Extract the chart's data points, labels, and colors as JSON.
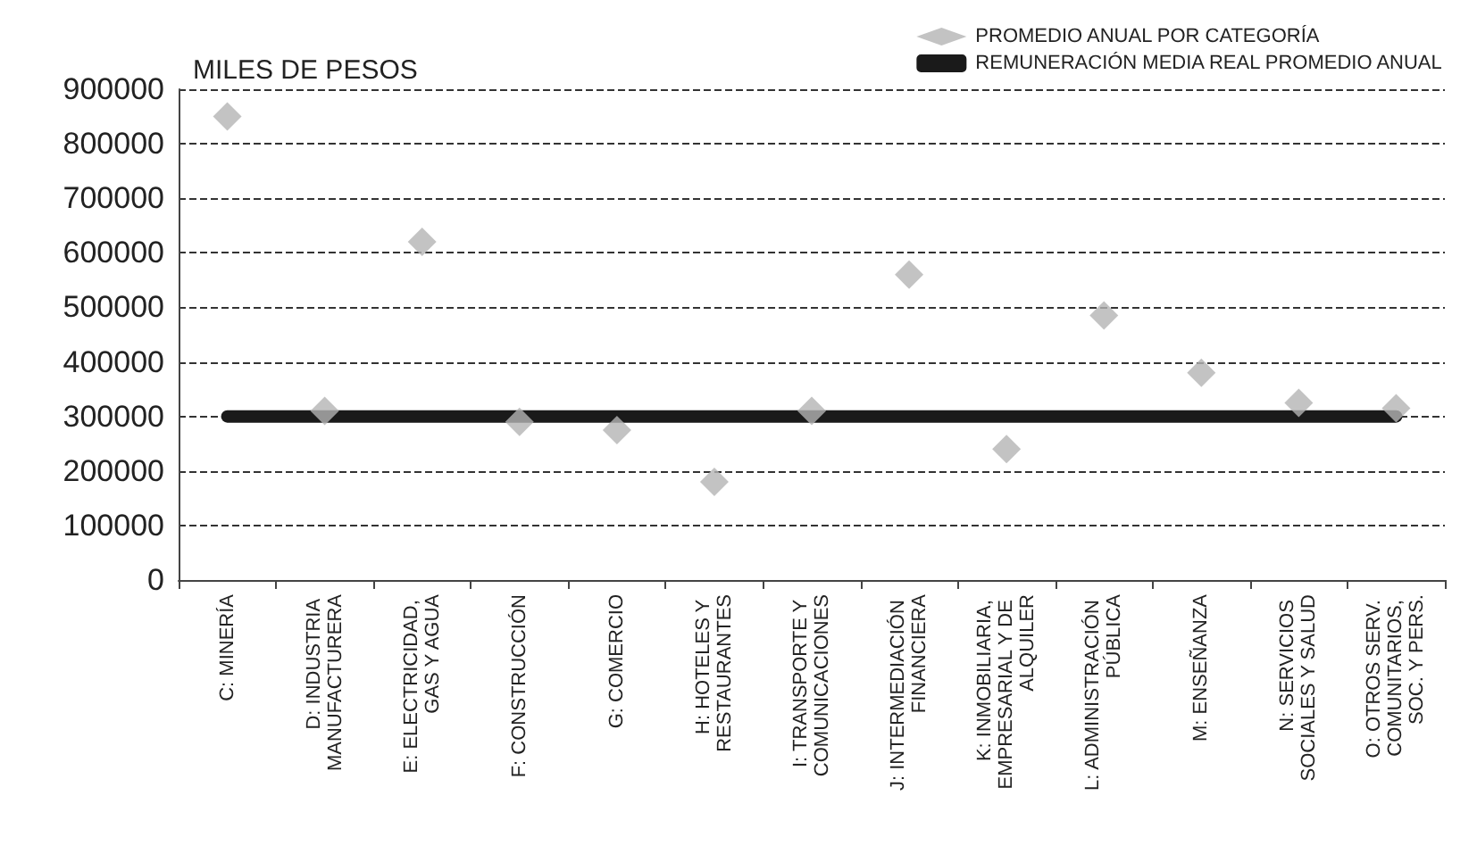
{
  "chart_data": {
    "type": "scatter",
    "ylabel": "MILES DE PESOS",
    "categories": [
      "C: MINERÍA",
      "D: INDUSTRIA MANUFACTURERA",
      "E: ELECTRICIDAD, GAS Y AGUA",
      "F: CONSTRUCCIÓN",
      "G: COMERCIO",
      "H: HOTELES Y RESTAURANTES",
      "I: TRANSPORTE Y COMUNICACIONES",
      "J: INTERMEDIACIÓN FINANCIERA",
      "K: INMOBILIARIA, EMPRESARIAL Y DE ALQUILER",
      "L: ADMINISTRACIÓN PÚBLICA",
      "M: ENSEÑANZA",
      "N: SERVICIOS SOCIALES Y SALUD",
      "O: OTROS SERV. COMUNITARIOS, SOC. Y PERS."
    ],
    "series": [
      {
        "name": "PROMEDIO ANUAL POR CATEGORÍA",
        "marker": "diamond",
        "color": "#b4b4b4",
        "values": [
          850000,
          310000,
          620000,
          290000,
          275000,
          180000,
          310000,
          560000,
          240000,
          485000,
          380000,
          325000,
          315000
        ]
      },
      {
        "name": "REMUNERACIÓN MEDIA REAL PROMEDIO ANUAL",
        "type": "line",
        "marker": "none",
        "line_style": "solid",
        "color": "#1a1a1a",
        "values": [
          300000,
          300000,
          300000,
          300000,
          300000,
          300000,
          300000,
          300000,
          300000,
          300000,
          300000,
          300000,
          300000
        ]
      }
    ],
    "ylim": [
      0,
      900000
    ],
    "yticks": [
      0,
      100000,
      200000,
      300000,
      400000,
      500000,
      600000,
      700000,
      800000,
      900000
    ],
    "grid": "y",
    "legend": "top right"
  }
}
